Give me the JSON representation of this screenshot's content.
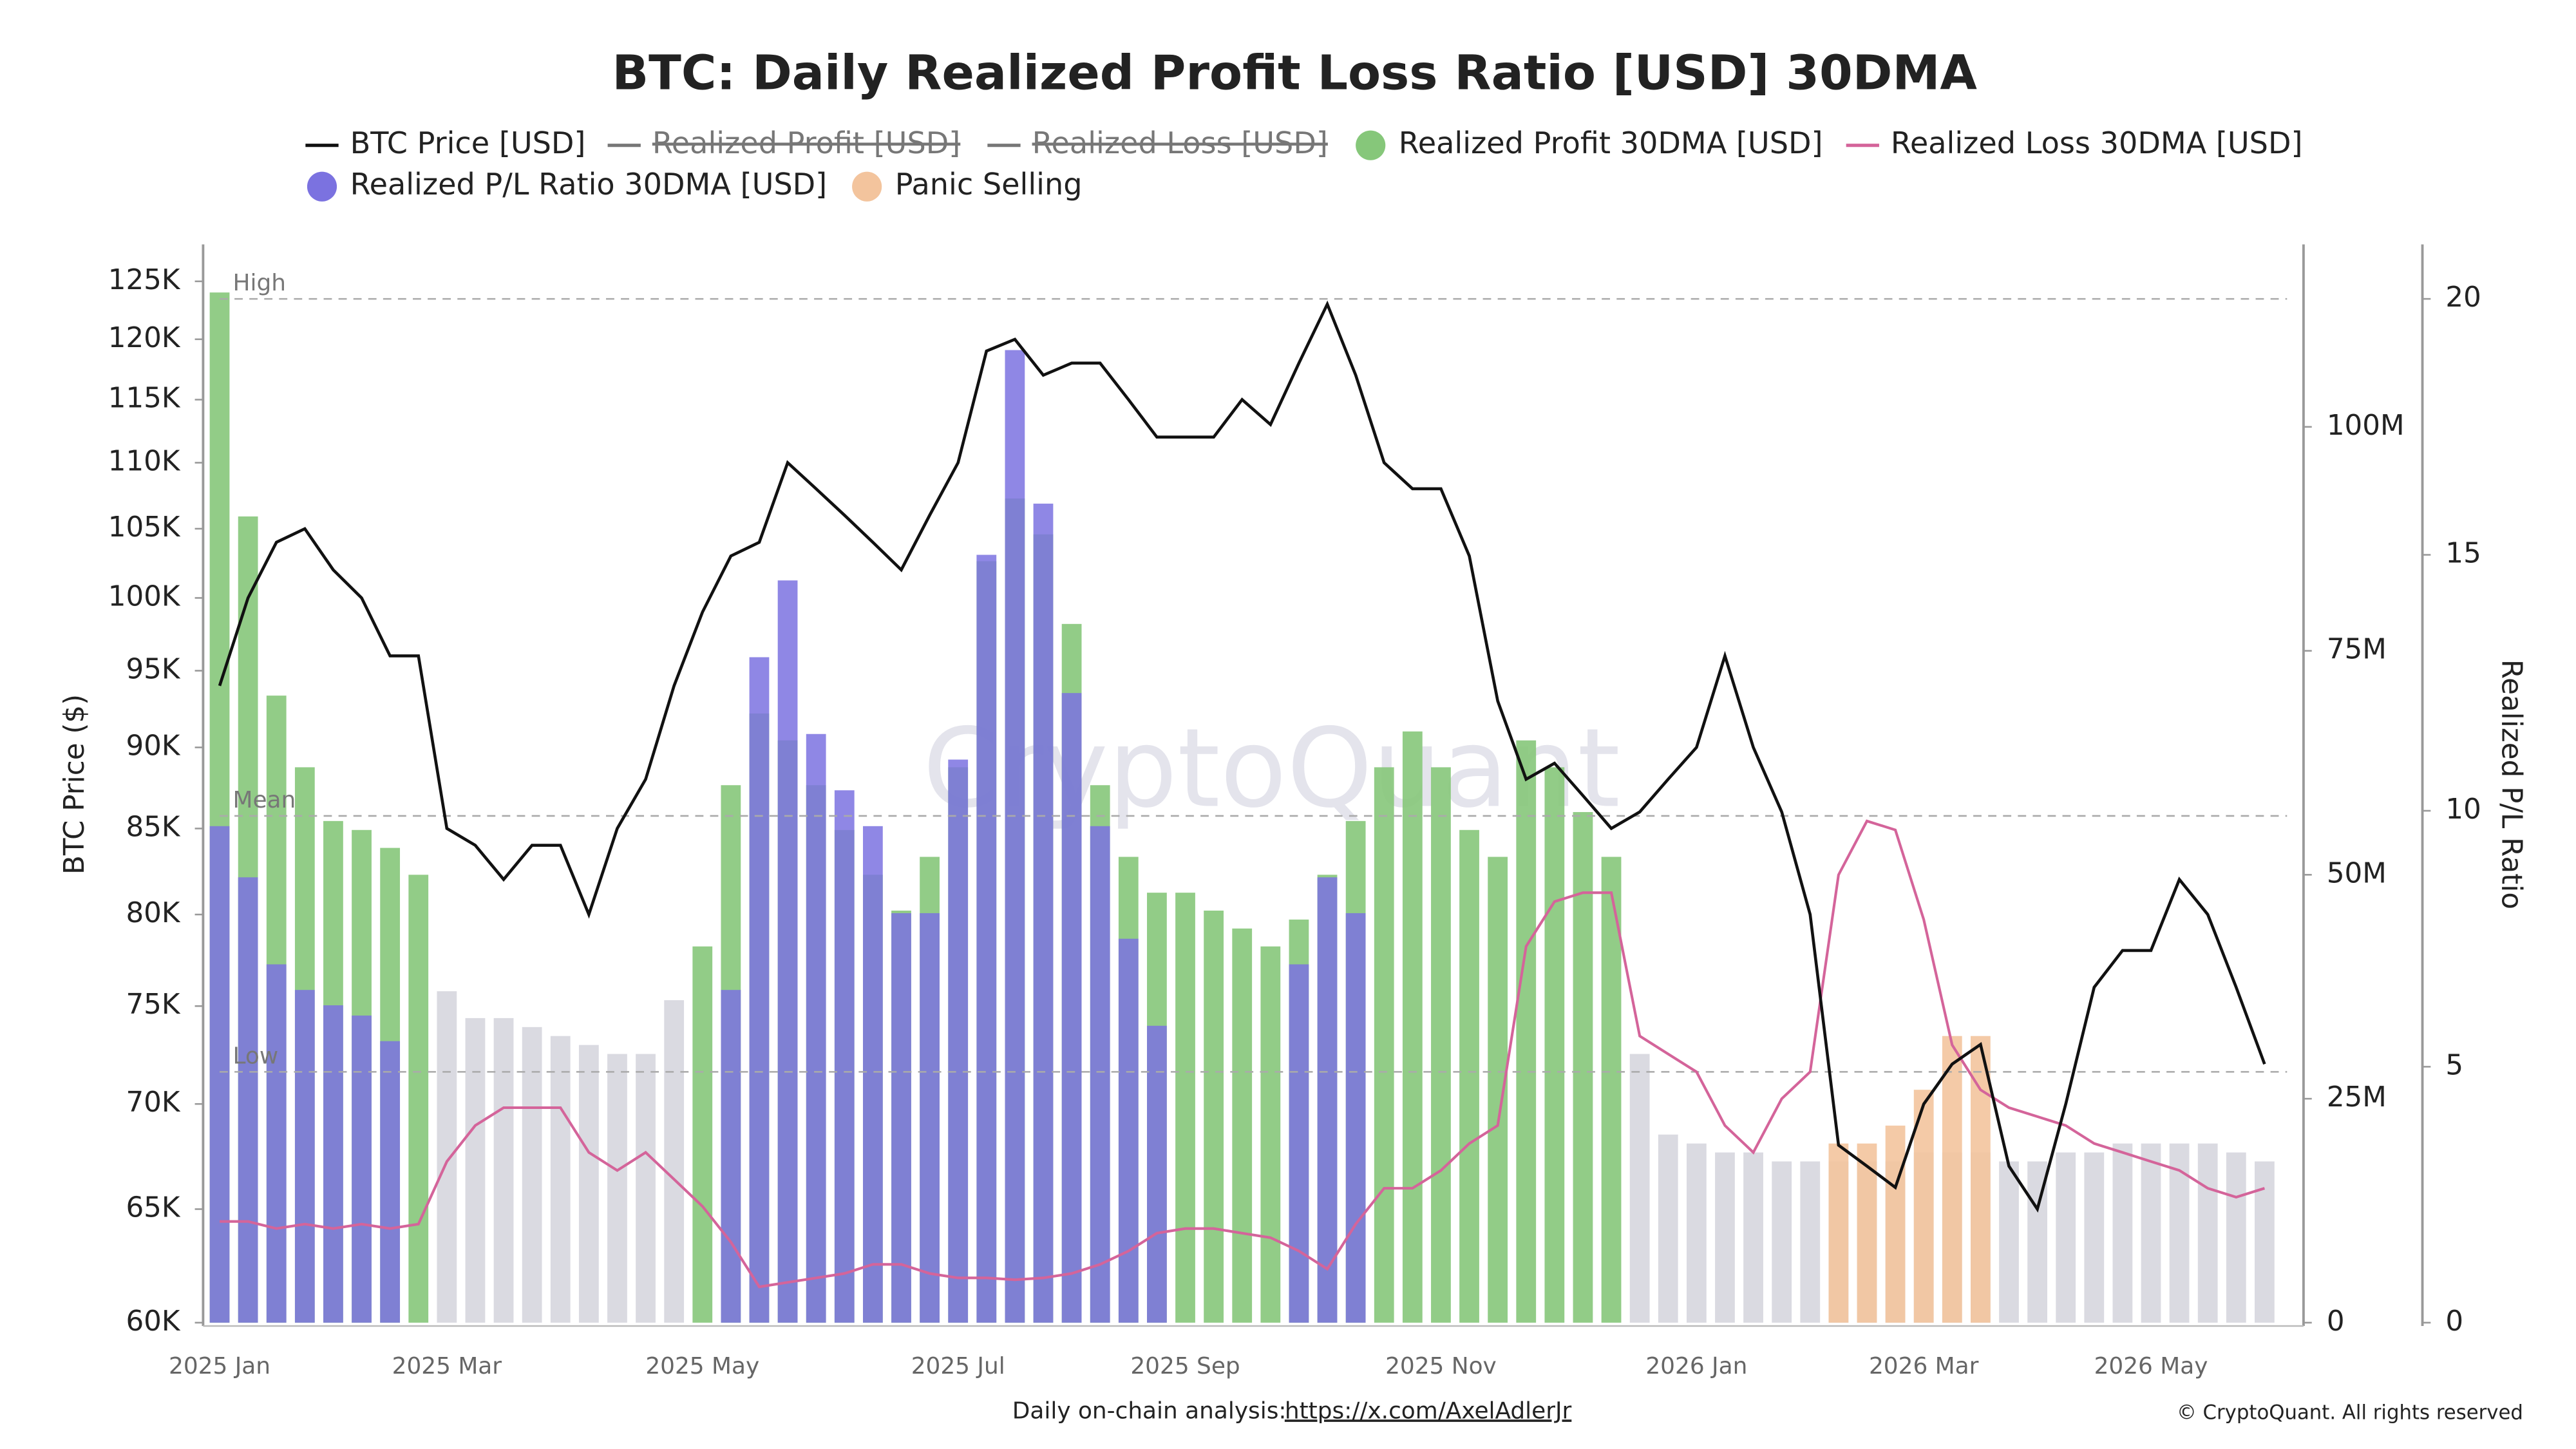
{
  "chart_data": {
    "type": "combo",
    "title": "BTC: Daily Realized Profit Loss Ratio [USD] 30DMA",
    "watermark": "CryptoQuant",
    "ylabel": "BTC Price ($)",
    "y3label": "Realized P/L Ratio",
    "footer": {
      "text": "Daily on-chain analysis:",
      "link": "https://x.com/AxelAdlerJr",
      "copyright": "© CryptoQuant. All rights reserved"
    },
    "categories": [
      "2025 Jan",
      null,
      null,
      null,
      null,
      null,
      null,
      null,
      "2025 Mar",
      null,
      null,
      null,
      null,
      null,
      null,
      null,
      null,
      "2025 May",
      null,
      null,
      null,
      null,
      null,
      null,
      null,
      null,
      "2025 Jul",
      null,
      null,
      null,
      null,
      null,
      null,
      null,
      "2025 Sep",
      null,
      null,
      null,
      null,
      null,
      null,
      null,
      null,
      "2025 Nov",
      null,
      null,
      null,
      null,
      null,
      null,
      null,
      null,
      "2026 Jan",
      null,
      null,
      null,
      null,
      null,
      null,
      null,
      "2026 Mar",
      null,
      null,
      null,
      null,
      null,
      null,
      null,
      "2026 May",
      null,
      null,
      null,
      null
    ],
    "ylog": true,
    "ylim": [
      60000,
      128000
    ],
    "yticks": [
      {
        "value": 60000,
        "label": "60K"
      },
      {
        "value": 65000,
        "label": "65K"
      },
      {
        "value": 70000,
        "label": "70K"
      },
      {
        "value": 75000,
        "label": "75K"
      },
      {
        "value": 80000,
        "label": "80K"
      },
      {
        "value": 85000,
        "label": "85K"
      },
      {
        "value": 90000,
        "label": "90K"
      },
      {
        "value": 95000,
        "label": "95K"
      },
      {
        "value": 100000,
        "label": "100K"
      },
      {
        "value": 105000,
        "label": "105K"
      },
      {
        "value": 110000,
        "label": "110K"
      },
      {
        "value": 115000,
        "label": "115K"
      },
      {
        "value": 120000,
        "label": "120K"
      },
      {
        "value": 125000,
        "label": "125K"
      }
    ],
    "y2lim": [
      0,
      120000000
    ],
    "y2ticks": [
      0,
      {
        "value": 25000000,
        "label": "25M"
      },
      {
        "value": 50000000,
        "label": "50M"
      },
      {
        "value": 75000000,
        "label": "75M"
      },
      {
        "value": 100000000,
        "label": "100M"
      }
    ],
    "y3lim": [
      0,
      21
    ],
    "y3ticks": [
      0,
      5,
      10,
      15,
      20
    ],
    "reference_lines": [
      {
        "label": "High",
        "value": 20,
        "axis": "y3"
      },
      {
        "label": "Mean",
        "value": 9.9,
        "axis": "y3"
      },
      {
        "label": "Low",
        "value": 4.9,
        "axis": "y3"
      }
    ],
    "series": [
      {
        "name": "BTC Price [USD]",
        "type": "line",
        "axis": "y",
        "color": "#111111",
        "values": [
          94000,
          100000,
          104000,
          105000,
          102000,
          100000,
          96000,
          96000,
          85000,
          84000,
          82000,
          84000,
          84000,
          80000,
          85000,
          88000,
          94000,
          99000,
          103000,
          104000,
          110000,
          108000,
          106000,
          104000,
          102000,
          106000,
          110000,
          119000,
          120000,
          117000,
          118000,
          118000,
          115000,
          112000,
          112000,
          112000,
          115000,
          113000,
          118000,
          123000,
          117000,
          110000,
          108000,
          108000,
          103000,
          93000,
          88000,
          89000,
          87000,
          85000,
          86000,
          88000,
          90000,
          96000,
          90000,
          86000,
          80000,
          68000,
          67000,
          66000,
          70000,
          72000,
          73000,
          67000,
          65000,
          70000,
          76000,
          78000,
          78000,
          82000,
          80000,
          76000,
          72000
        ]
      },
      {
        "name": "Realized Profit [USD]",
        "visible": false,
        "color": "#777777"
      },
      {
        "name": "Realized Loss [USD]",
        "visible": false,
        "color": "#777777"
      },
      {
        "name": "Realized Profit 30DMA [USD]",
        "type": "bar",
        "axis": "y2",
        "color": "#86c77a",
        "values": [
          115000000,
          90000000,
          70000000,
          62000000,
          56000000,
          55000000,
          53000000,
          50000000,
          37000000,
          34000000,
          34000000,
          33000000,
          32000000,
          31000000,
          30000000,
          30000000,
          36000000,
          42000000,
          60000000,
          68000000,
          65000000,
          60000000,
          55000000,
          50000000,
          46000000,
          52000000,
          62000000,
          85000000,
          92000000,
          88000000,
          78000000,
          60000000,
          52000000,
          48000000,
          48000000,
          46000000,
          44000000,
          42000000,
          45000000,
          50000000,
          56000000,
          62000000,
          66000000,
          62000000,
          55000000,
          52000000,
          65000000,
          62000000,
          57000000,
          52000000,
          30000000,
          21000000,
          20000000,
          19000000,
          19000000,
          18000000,
          18000000,
          18000000,
          18000000,
          18000000,
          19000000,
          19000000,
          19000000,
          18000000,
          18000000,
          19000000,
          19000000,
          20000000,
          20000000,
          20000000,
          20000000,
          19000000,
          18000000
        ],
        "colors": [
          "#86c77a",
          "#86c77a",
          "#86c77a",
          "#86c77a",
          "#86c77a",
          "#86c77a",
          "#86c77a",
          "#86c77a",
          "#d6d6de",
          "#d6d6de",
          "#d6d6de",
          "#d6d6de",
          "#d6d6de",
          "#d6d6de",
          "#d6d6de",
          "#d6d6de",
          "#d6d6de",
          "#86c77a",
          "#86c77a",
          "#86c77a",
          "#86c77a",
          "#86c77a",
          "#86c77a",
          "#86c77a",
          "#86c77a",
          "#86c77a",
          "#86c77a",
          "#86c77a",
          "#86c77a",
          "#86c77a",
          "#86c77a",
          "#86c77a",
          "#86c77a",
          "#86c77a",
          "#86c77a",
          "#86c77a",
          "#86c77a",
          "#86c77a",
          "#86c77a",
          "#86c77a",
          "#86c77a",
          "#86c77a",
          "#86c77a",
          "#86c77a",
          "#86c77a",
          "#86c77a",
          "#86c77a",
          "#86c77a",
          "#86c77a",
          "#86c77a",
          "#d6d6de",
          "#d6d6de",
          "#d6d6de",
          "#d6d6de",
          "#d6d6de",
          "#d6d6de",
          "#d6d6de",
          "#d6d6de",
          "#d6d6de",
          "#d6d6de",
          "#d6d6de",
          "#d6d6de",
          "#d6d6de",
          "#d6d6de",
          "#d6d6de",
          "#d6d6de",
          "#d6d6de",
          "#d6d6de",
          "#d6d6de",
          "#d6d6de",
          "#d6d6de",
          "#d6d6de",
          "#d6d6de"
        ]
      },
      {
        "name": "Realized Loss 30DMA [USD]",
        "type": "line",
        "axis": "y2",
        "color": "#d4649a",
        "values": [
          11300000,
          11300000,
          10500000,
          11000000,
          10500000,
          11000000,
          10500000,
          11000000,
          18000000,
          22000000,
          24000000,
          24000000,
          24000000,
          19000000,
          17000000,
          19000000,
          16000000,
          13000000,
          9000000,
          4000000,
          4500000,
          5000000,
          5500000,
          6500000,
          6500000,
          5500000,
          5000000,
          5000000,
          4800000,
          5000000,
          5500000,
          6500000,
          8000000,
          10000000,
          10500000,
          10500000,
          10000000,
          9500000,
          8000000,
          6000000,
          11000000,
          15000000,
          15000000,
          17000000,
          20000000,
          22000000,
          42000000,
          47000000,
          48000000,
          48000000,
          32000000,
          30000000,
          28000000,
          22000000,
          19000000,
          25000000,
          28000000,
          50000000,
          56000000,
          55000000,
          45000000,
          31000000,
          26000000,
          24000000,
          23000000,
          22000000,
          20000000,
          19000000,
          18000000,
          17000000,
          15000000,
          14000000,
          15000000
        ]
      },
      {
        "name": "Realized P/L Ratio 30DMA [USD]",
        "type": "bar",
        "axis": "y3",
        "color": "#7b72e0",
        "values": [
          9.7,
          8.7,
          7,
          6.5,
          6.2,
          6,
          5.5,
          null,
          null,
          null,
          null,
          null,
          null,
          null,
          null,
          null,
          null,
          null,
          6.5,
          13,
          14.5,
          11.5,
          10.4,
          9.7,
          8,
          8,
          11,
          15,
          19,
          16,
          12.3,
          9.7,
          7.5,
          5.8,
          null,
          null,
          null,
          null,
          7,
          8.7,
          8,
          null,
          null,
          null,
          null,
          null,
          null,
          null,
          null,
          null,
          null,
          null,
          null,
          null,
          null,
          null,
          null,
          null,
          null,
          null,
          null,
          null,
          null,
          null,
          null,
          null,
          null,
          null,
          null,
          null,
          null,
          null,
          null
        ]
      },
      {
        "name": "Panic Selling",
        "type": "bar",
        "axis": "y2",
        "color": "#f3c49d",
        "values": [
          null,
          null,
          null,
          null,
          null,
          null,
          null,
          null,
          null,
          null,
          null,
          null,
          null,
          null,
          null,
          null,
          null,
          null,
          null,
          null,
          null,
          null,
          null,
          null,
          null,
          null,
          null,
          null,
          null,
          null,
          null,
          null,
          null,
          null,
          null,
          null,
          null,
          null,
          null,
          null,
          null,
          null,
          null,
          null,
          null,
          null,
          null,
          null,
          null,
          null,
          null,
          null,
          null,
          null,
          null,
          null,
          null,
          20000000,
          20000000,
          22000000,
          26000000,
          32000000,
          32000000,
          null,
          null,
          null,
          null,
          null,
          null,
          null,
          null,
          null,
          null
        ]
      }
    ]
  }
}
